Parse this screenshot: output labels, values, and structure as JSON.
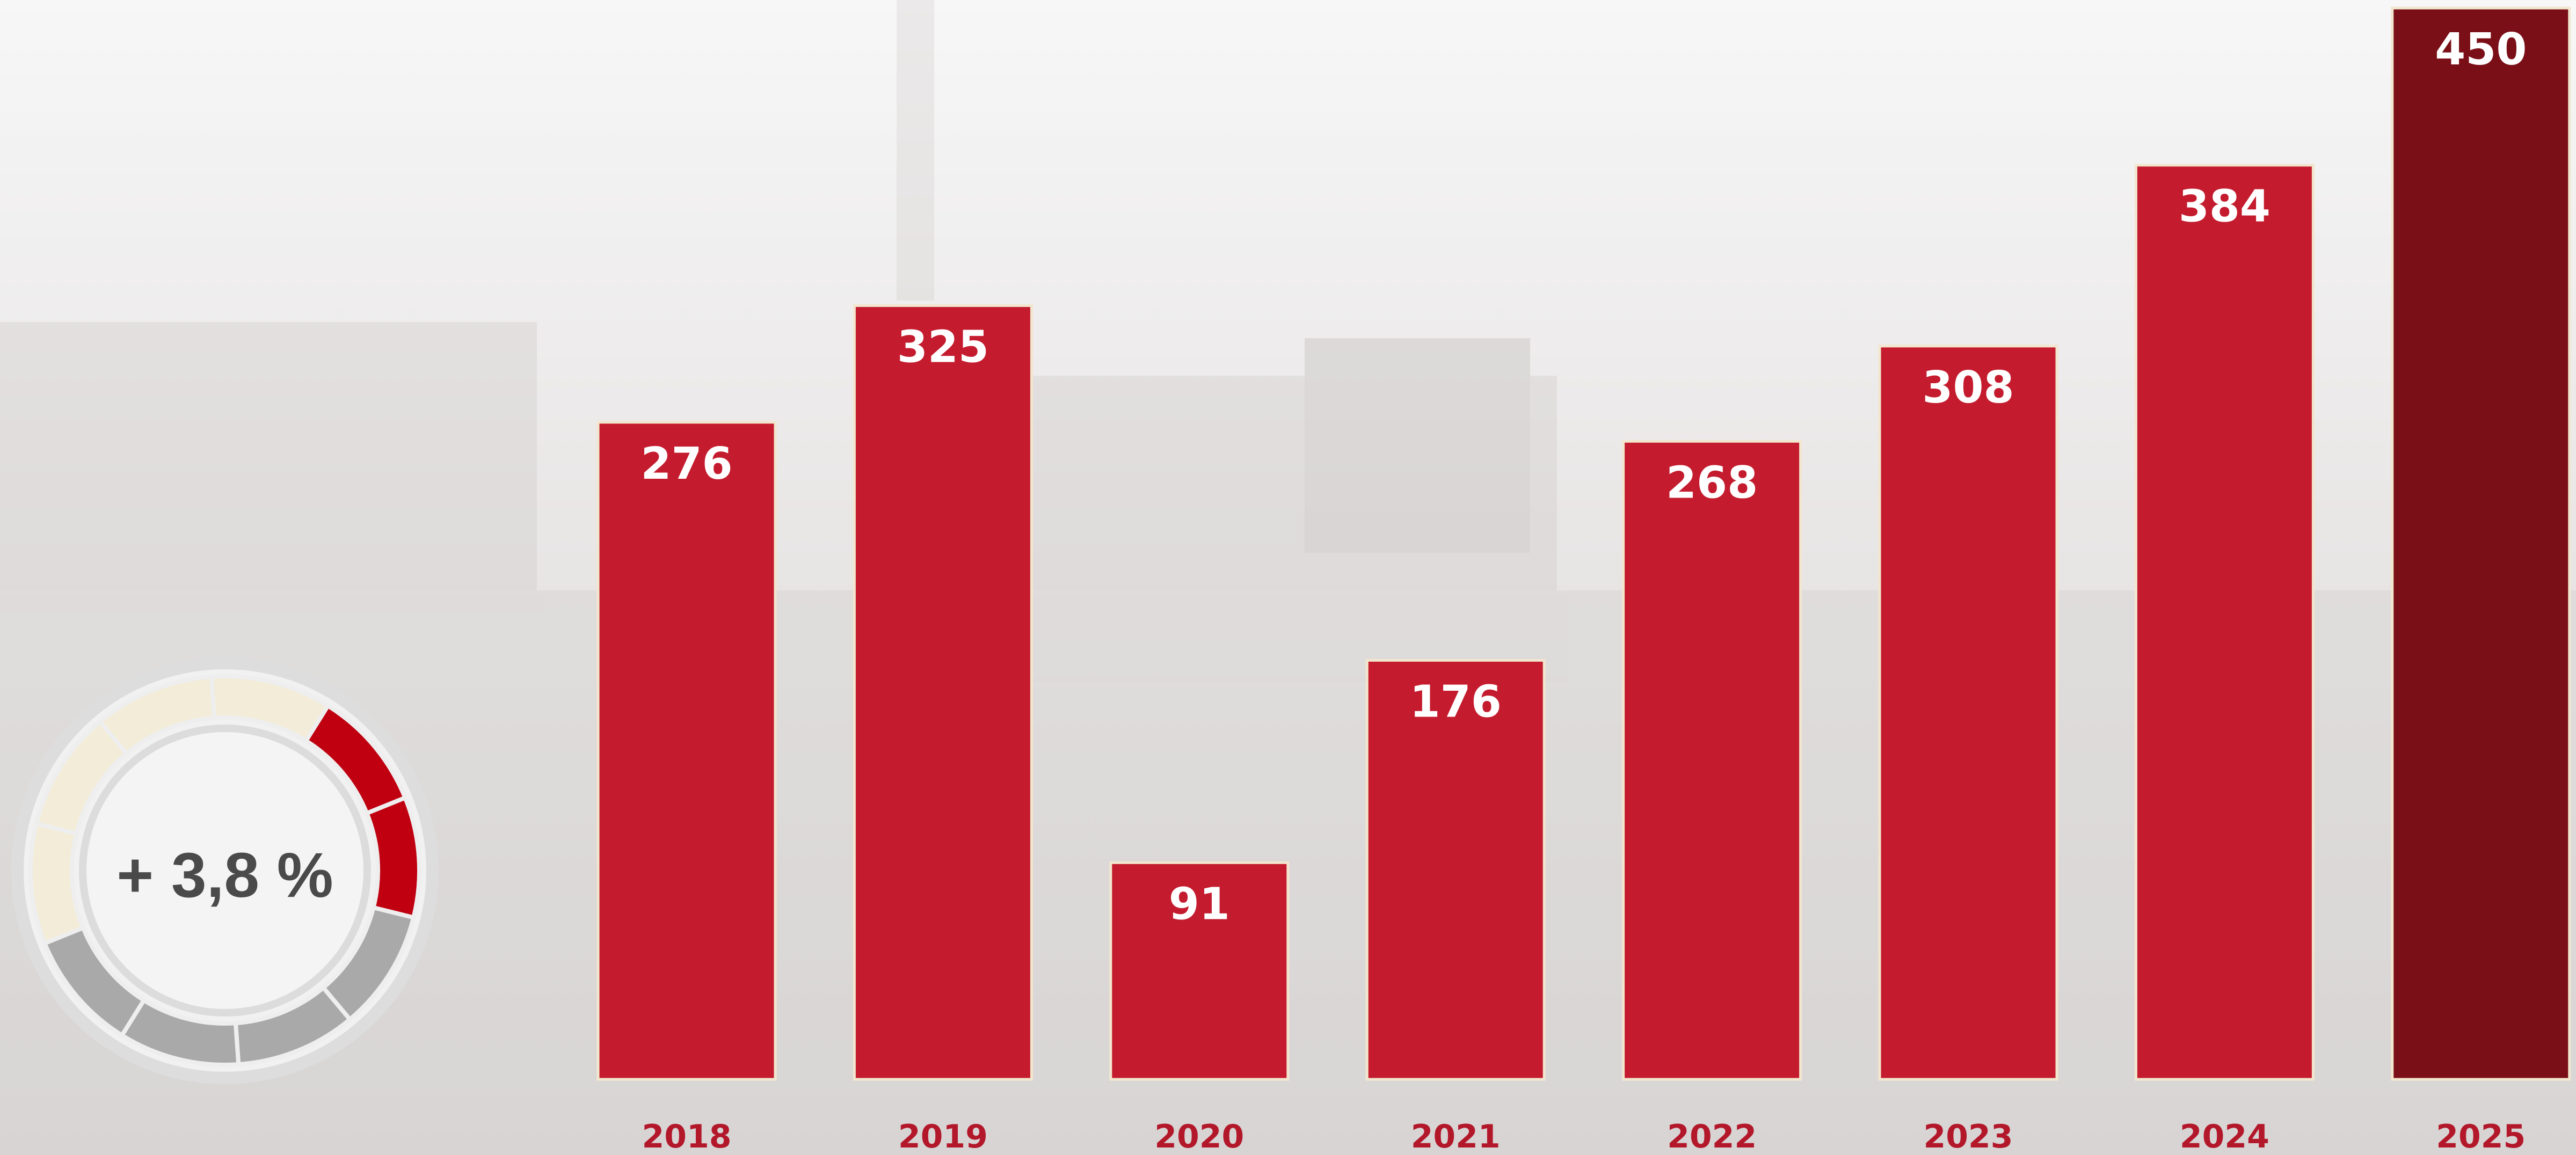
{
  "chart_data": {
    "type": "bar",
    "categories": [
      "2018",
      "2019",
      "2020",
      "2021",
      "2022",
      "2023",
      "2024",
      "2025"
    ],
    "values": [
      276,
      325,
      91,
      176,
      268,
      308,
      384,
      450
    ],
    "colors": [
      "#c41c2e",
      "#c41c2e",
      "#c41c2e",
      "#c41c2e",
      "#c41c2e",
      "#c41c2e",
      "#c41c2e",
      "#7a0f17"
    ],
    "ylim": [
      0,
      450
    ],
    "growth_label": "+ 3,8 %"
  }
}
